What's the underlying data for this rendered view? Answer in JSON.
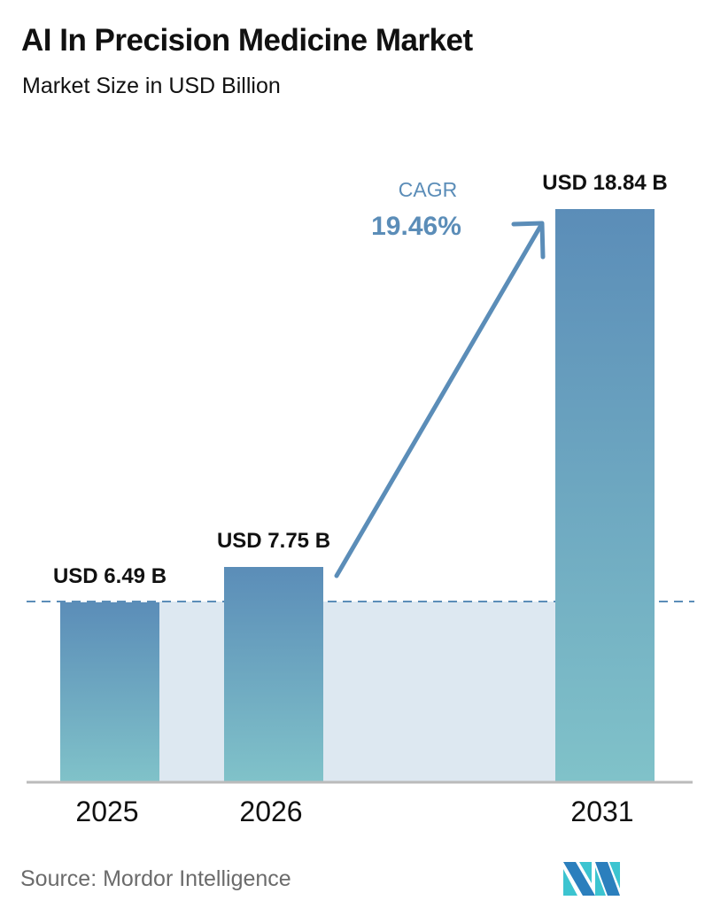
{
  "title": "AI In Precision Medicine Market",
  "subtitle": "Market Size in USD Billion",
  "cagr": {
    "label": "CAGR",
    "value": "19.46%",
    "color": "#5b8db8"
  },
  "source": "Source:  Mordor Intelligence",
  "logo": "mordor-intelligence-logo",
  "colors": {
    "bar_top": "#5b8db8",
    "bar_bottom": "#7fc1c9",
    "fill_band": "#dde8f1",
    "dashed": "#5b8db8",
    "axis": "#bbbbbb"
  },
  "chart_data": {
    "type": "bar",
    "title": "AI In Precision Medicine Market",
    "subtitle": "Market Size in USD Billion",
    "categories": [
      "2025",
      "2026",
      "2031"
    ],
    "values": [
      6.49,
      7.75,
      18.84
    ],
    "data_labels": [
      "USD 6.49 B",
      "USD 7.75 B",
      "USD 18.84 B"
    ],
    "xlabel": "",
    "ylabel": "Market Size (USD Billion)",
    "annotations": [
      {
        "text": "CAGR 19.46%",
        "type": "arrow",
        "from": "2026",
        "to": "2031"
      }
    ],
    "grid": false,
    "legend": null
  }
}
